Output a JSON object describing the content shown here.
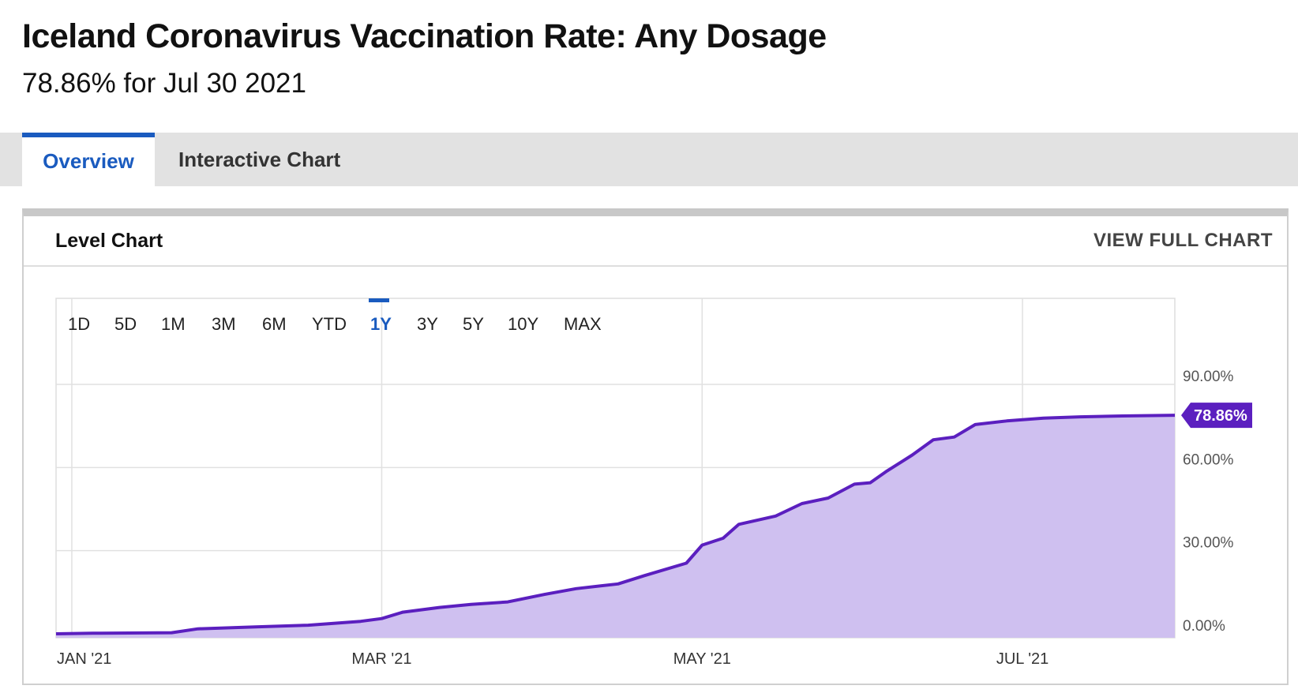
{
  "header": {
    "title": "Iceland Coronavirus Vaccination Rate: Any Dosage",
    "subtitle": "78.86% for Jul 30 2021"
  },
  "tabs": [
    {
      "label": "Overview",
      "active": true
    },
    {
      "label": "Interactive Chart",
      "active": false
    }
  ],
  "panel": {
    "title": "Level Chart",
    "link_label": "VIEW FULL CHART"
  },
  "range_buttons": [
    {
      "label": "1D",
      "active": false
    },
    {
      "label": "5D",
      "active": false
    },
    {
      "label": "1M",
      "active": false
    },
    {
      "label": "3M",
      "active": false
    },
    {
      "label": "6M",
      "active": false
    },
    {
      "label": "YTD",
      "active": false
    },
    {
      "label": "1Y",
      "active": true
    },
    {
      "label": "3Y",
      "active": false
    },
    {
      "label": "5Y",
      "active": false
    },
    {
      "label": "10Y",
      "active": false
    },
    {
      "label": "MAX",
      "active": false
    }
  ],
  "colors": {
    "accent": "#1a5bbf",
    "line": "#5b1fbf",
    "area": "#cfc0f0",
    "marker": "#5b1fbf"
  },
  "chart_data": {
    "type": "area",
    "title": "",
    "xlabel": "",
    "ylabel": "",
    "x_start": "2020-12-29",
    "x_end": "2021-07-30",
    "xticks": [
      {
        "label": "JAN '21",
        "date": "2021-01-01"
      },
      {
        "label": "MAR '21",
        "date": "2021-03-01"
      },
      {
        "label": "MAY '21",
        "date": "2021-05-01"
      },
      {
        "label": "JUL '21",
        "date": "2021-07-01"
      }
    ],
    "yticks": [
      {
        "label": "0.00%",
        "value": 0
      },
      {
        "label": "30.00%",
        "value": 30
      },
      {
        "label": "60.00%",
        "value": 60
      },
      {
        "label": "90.00%",
        "value": 90
      }
    ],
    "ylim": [
      0,
      120
    ],
    "grid": true,
    "last_value_label": "78.86%",
    "series": [
      {
        "points": [
          [
            "2020-12-29",
            0.0
          ],
          [
            "2021-01-05",
            0.2
          ],
          [
            "2021-01-20",
            0.4
          ],
          [
            "2021-01-25",
            1.8
          ],
          [
            "2021-02-05",
            2.5
          ],
          [
            "2021-02-15",
            3.1
          ],
          [
            "2021-02-25",
            4.5
          ],
          [
            "2021-03-01",
            5.5
          ],
          [
            "2021-03-05",
            7.8
          ],
          [
            "2021-03-12",
            9.5
          ],
          [
            "2021-03-18",
            10.6
          ],
          [
            "2021-03-25",
            11.5
          ],
          [
            "2021-04-01",
            14.2
          ],
          [
            "2021-04-07",
            16.3
          ],
          [
            "2021-04-15",
            18.0
          ],
          [
            "2021-04-20",
            21.0
          ],
          [
            "2021-04-28",
            25.5
          ],
          [
            "2021-05-01",
            32.0
          ],
          [
            "2021-05-05",
            34.5
          ],
          [
            "2021-05-08",
            39.5
          ],
          [
            "2021-05-15",
            42.5
          ],
          [
            "2021-05-20",
            47.0
          ],
          [
            "2021-05-25",
            49.0
          ],
          [
            "2021-05-30",
            54.0
          ],
          [
            "2021-06-02",
            54.5
          ],
          [
            "2021-06-05",
            58.5
          ],
          [
            "2021-06-10",
            64.5
          ],
          [
            "2021-06-14",
            70.0
          ],
          [
            "2021-06-18",
            71.0
          ],
          [
            "2021-06-22",
            75.5
          ],
          [
            "2021-06-28",
            76.8
          ],
          [
            "2021-07-05",
            77.8
          ],
          [
            "2021-07-12",
            78.3
          ],
          [
            "2021-07-20",
            78.6
          ],
          [
            "2021-07-30",
            78.86
          ]
        ]
      }
    ]
  }
}
